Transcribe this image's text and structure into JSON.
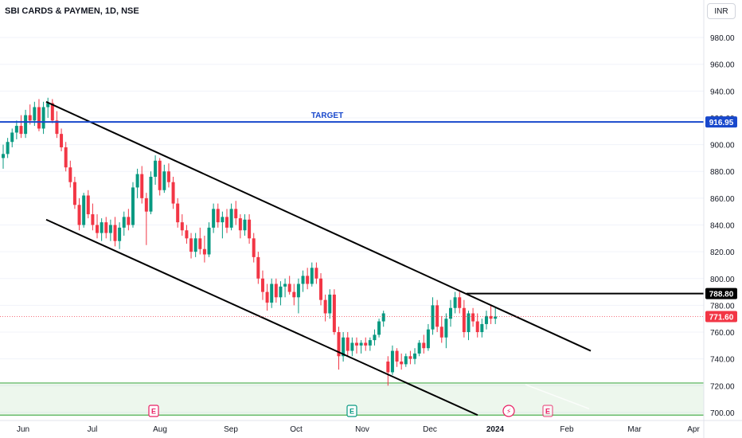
{
  "header": {
    "title": "SBI CARDS & PAYMEN, 1D, NSE",
    "currency": "INR"
  },
  "colors": {
    "up": "#089981",
    "down": "#f23645",
    "target": "#1848cc",
    "zone": "#4caf50",
    "text": "#131722",
    "grid": "#f0f3fa"
  },
  "chart_data": {
    "type": "candlestick",
    "title": "SBI CARDS & PAYMEN, 1D, NSE",
    "ylim": [
      694,
      1008
    ],
    "y_ticks": [
      "700.00",
      "720.00",
      "740.00",
      "760.00",
      "780.00",
      "800.00",
      "820.00",
      "840.00",
      "860.00",
      "880.00",
      "900.00",
      "920.00",
      "940.00",
      "960.00",
      "980.00"
    ],
    "x_ticks": [
      "Jun",
      "Jul",
      "Aug",
      "Sep",
      "Oct",
      "Nov",
      "Dec",
      "2024",
      "Feb",
      "Mar",
      "Apr"
    ],
    "price_labels": [
      {
        "text": "916.95",
        "value": 916.95,
        "style": "target"
      },
      {
        "text": "788.80",
        "value": 788.8,
        "style": "level"
      },
      {
        "text": "771.60",
        "value": 771.6,
        "style": "last"
      }
    ],
    "annotations": [
      {
        "text": "TARGET",
        "value": 916.95
      }
    ],
    "markers": [
      {
        "text": "E",
        "x": "Aug",
        "type": "earnings"
      },
      {
        "text": "E",
        "x": "Nov",
        "type": "earnings"
      },
      {
        "text": "⚡",
        "x": "2024",
        "type": "dividend"
      },
      {
        "text": "E",
        "x": "Feb",
        "type": "earnings"
      }
    ],
    "levels": [
      {
        "name": "target",
        "value": 916.95
      },
      {
        "name": "resistance",
        "value": 788.8,
        "from": "Dec",
        "to": "2024"
      }
    ],
    "zone": [
      698,
      722
    ],
    "channel": {
      "upper": [
        {
          "x": "Jun",
          "y": 932
        },
        {
          "x": "Feb",
          "y": 746
        }
      ],
      "lower": [
        {
          "x": "Jun",
          "y": 844
        },
        {
          "x": "2024",
          "y": 698
        }
      ]
    },
    "series": [
      {
        "x": "Jun",
        "o": 890,
        "h": 900,
        "l": 882,
        "c": 893
      },
      {
        "x": "Jun",
        "o": 893,
        "h": 905,
        "l": 890,
        "c": 902
      },
      {
        "x": "Jun",
        "o": 902,
        "h": 912,
        "l": 898,
        "c": 909
      },
      {
        "x": "Jun",
        "o": 909,
        "h": 918,
        "l": 904,
        "c": 914
      },
      {
        "x": "Jun",
        "o": 914,
        "h": 922,
        "l": 905,
        "c": 908
      },
      {
        "x": "Jun",
        "o": 908,
        "h": 926,
        "l": 905,
        "c": 922
      },
      {
        "x": "Jun",
        "o": 922,
        "h": 930,
        "l": 915,
        "c": 918
      },
      {
        "x": "Jun",
        "o": 918,
        "h": 932,
        "l": 914,
        "c": 928
      },
      {
        "x": "Jun",
        "o": 928,
        "h": 934,
        "l": 910,
        "c": 912
      },
      {
        "x": "Jun",
        "o": 912,
        "h": 932,
        "l": 908,
        "c": 928
      },
      {
        "x": "Jun",
        "o": 928,
        "h": 935,
        "l": 920,
        "c": 931
      },
      {
        "x": "Jun",
        "o": 931,
        "h": 934,
        "l": 916,
        "c": 918
      },
      {
        "x": "Jun",
        "o": 918,
        "h": 925,
        "l": 905,
        "c": 908
      },
      {
        "x": "Jun",
        "o": 908,
        "h": 912,
        "l": 895,
        "c": 898
      },
      {
        "x": "Jun",
        "o": 898,
        "h": 902,
        "l": 880,
        "c": 883
      },
      {
        "x": "Jun",
        "o": 883,
        "h": 888,
        "l": 868,
        "c": 872
      },
      {
        "x": "Jul",
        "o": 872,
        "h": 876,
        "l": 852,
        "c": 855
      },
      {
        "x": "Jul",
        "o": 855,
        "h": 860,
        "l": 836,
        "c": 840
      },
      {
        "x": "Jul",
        "o": 840,
        "h": 864,
        "l": 838,
        "c": 862
      },
      {
        "x": "Jul",
        "o": 862,
        "h": 866,
        "l": 845,
        "c": 848
      },
      {
        "x": "Jul",
        "o": 848,
        "h": 856,
        "l": 836,
        "c": 840
      },
      {
        "x": "Jul",
        "o": 840,
        "h": 848,
        "l": 830,
        "c": 834
      },
      {
        "x": "Jul",
        "o": 834,
        "h": 845,
        "l": 828,
        "c": 842
      },
      {
        "x": "Jul",
        "o": 842,
        "h": 846,
        "l": 830,
        "c": 834
      },
      {
        "x": "Jul",
        "o": 834,
        "h": 844,
        "l": 828,
        "c": 840
      },
      {
        "x": "Jul",
        "o": 840,
        "h": 846,
        "l": 824,
        "c": 828
      },
      {
        "x": "Jul",
        "o": 828,
        "h": 842,
        "l": 822,
        "c": 838
      },
      {
        "x": "Jul",
        "o": 838,
        "h": 850,
        "l": 832,
        "c": 846
      },
      {
        "x": "Jul",
        "o": 846,
        "h": 852,
        "l": 836,
        "c": 840
      },
      {
        "x": "Jul",
        "o": 840,
        "h": 872,
        "l": 838,
        "c": 868
      },
      {
        "x": "Jul",
        "o": 868,
        "h": 882,
        "l": 860,
        "c": 878
      },
      {
        "x": "Jul",
        "o": 878,
        "h": 884,
        "l": 856,
        "c": 860
      },
      {
        "x": "Aug",
        "o": 860,
        "h": 864,
        "l": 825,
        "c": 850
      },
      {
        "x": "Aug",
        "o": 850,
        "h": 880,
        "l": 848,
        "c": 876
      },
      {
        "x": "Aug",
        "o": 876,
        "h": 892,
        "l": 870,
        "c": 888
      },
      {
        "x": "Aug",
        "o": 888,
        "h": 890,
        "l": 862,
        "c": 866
      },
      {
        "x": "Aug",
        "o": 866,
        "h": 885,
        "l": 864,
        "c": 880
      },
      {
        "x": "Aug",
        "o": 880,
        "h": 886,
        "l": 868,
        "c": 872
      },
      {
        "x": "Aug",
        "o": 872,
        "h": 876,
        "l": 852,
        "c": 856
      },
      {
        "x": "Aug",
        "o": 856,
        "h": 860,
        "l": 838,
        "c": 842
      },
      {
        "x": "Aug",
        "o": 842,
        "h": 848,
        "l": 832,
        "c": 836
      },
      {
        "x": "Aug",
        "o": 836,
        "h": 840,
        "l": 826,
        "c": 830
      },
      {
        "x": "Aug",
        "o": 830,
        "h": 834,
        "l": 815,
        "c": 820
      },
      {
        "x": "Aug",
        "o": 820,
        "h": 834,
        "l": 816,
        "c": 830
      },
      {
        "x": "Aug",
        "o": 830,
        "h": 838,
        "l": 818,
        "c": 822
      },
      {
        "x": "Sep",
        "o": 822,
        "h": 832,
        "l": 812,
        "c": 818
      },
      {
        "x": "Sep",
        "o": 818,
        "h": 842,
        "l": 816,
        "c": 838
      },
      {
        "x": "Sep",
        "o": 838,
        "h": 856,
        "l": 834,
        "c": 852
      },
      {
        "x": "Sep",
        "o": 852,
        "h": 856,
        "l": 838,
        "c": 842
      },
      {
        "x": "Sep",
        "o": 842,
        "h": 850,
        "l": 830,
        "c": 846
      },
      {
        "x": "Sep",
        "o": 846,
        "h": 852,
        "l": 834,
        "c": 838
      },
      {
        "x": "Sep",
        "o": 838,
        "h": 856,
        "l": 836,
        "c": 852
      },
      {
        "x": "Sep",
        "o": 852,
        "h": 858,
        "l": 840,
        "c": 845
      },
      {
        "x": "Sep",
        "o": 845,
        "h": 848,
        "l": 830,
        "c": 836
      },
      {
        "x": "Sep",
        "o": 836,
        "h": 848,
        "l": 832,
        "c": 844
      },
      {
        "x": "Sep",
        "o": 844,
        "h": 848,
        "l": 826,
        "c": 830
      },
      {
        "x": "Sep",
        "o": 830,
        "h": 834,
        "l": 812,
        "c": 816
      },
      {
        "x": "Sep",
        "o": 816,
        "h": 820,
        "l": 796,
        "c": 800
      },
      {
        "x": "Sep",
        "o": 800,
        "h": 806,
        "l": 784,
        "c": 790
      },
      {
        "x": "Oct",
        "o": 790,
        "h": 796,
        "l": 776,
        "c": 782
      },
      {
        "x": "Oct",
        "o": 782,
        "h": 800,
        "l": 778,
        "c": 796
      },
      {
        "x": "Oct",
        "o": 796,
        "h": 800,
        "l": 782,
        "c": 786
      },
      {
        "x": "Oct",
        "o": 786,
        "h": 798,
        "l": 780,
        "c": 794
      },
      {
        "x": "Oct",
        "o": 794,
        "h": 800,
        "l": 786,
        "c": 796
      },
      {
        "x": "Oct",
        "o": 796,
        "h": 802,
        "l": 788,
        "c": 790
      },
      {
        "x": "Oct",
        "o": 790,
        "h": 796,
        "l": 780,
        "c": 786
      },
      {
        "x": "Oct",
        "o": 786,
        "h": 800,
        "l": 774,
        "c": 796
      },
      {
        "x": "Oct",
        "o": 796,
        "h": 806,
        "l": 790,
        "c": 802
      },
      {
        "x": "Oct",
        "o": 802,
        "h": 808,
        "l": 792,
        "c": 796
      },
      {
        "x": "Oct",
        "o": 796,
        "h": 812,
        "l": 794,
        "c": 808
      },
      {
        "x": "Oct",
        "o": 808,
        "h": 812,
        "l": 796,
        "c": 800
      },
      {
        "x": "Oct",
        "o": 800,
        "h": 804,
        "l": 780,
        "c": 784
      },
      {
        "x": "Oct",
        "o": 784,
        "h": 788,
        "l": 768,
        "c": 774
      },
      {
        "x": "Oct",
        "o": 774,
        "h": 792,
        "l": 770,
        "c": 788
      },
      {
        "x": "Oct",
        "o": 788,
        "h": 792,
        "l": 758,
        "c": 760
      },
      {
        "x": "Nov",
        "o": 760,
        "h": 764,
        "l": 732,
        "c": 742
      },
      {
        "x": "Nov",
        "o": 742,
        "h": 760,
        "l": 738,
        "c": 756
      },
      {
        "x": "Nov",
        "o": 756,
        "h": 760,
        "l": 742,
        "c": 746
      },
      {
        "x": "Nov",
        "o": 746,
        "h": 756,
        "l": 742,
        "c": 752
      },
      {
        "x": "Nov",
        "o": 752,
        "h": 756,
        "l": 744,
        "c": 750
      },
      {
        "x": "Nov",
        "o": 750,
        "h": 754,
        "l": 744,
        "c": 752
      },
      {
        "x": "Nov",
        "o": 752,
        "h": 756,
        "l": 746,
        "c": 750
      },
      {
        "x": "Nov",
        "o": 750,
        "h": 756,
        "l": 746,
        "c": 754
      },
      {
        "x": "Nov",
        "o": 754,
        "h": 762,
        "l": 750,
        "c": 758
      },
      {
        "x": "Nov",
        "o": 758,
        "h": 770,
        "l": 756,
        "c": 768
      },
      {
        "x": "Nov",
        "o": 768,
        "h": 776,
        "l": 764,
        "c": 774
      },
      {
        "x": "Nov",
        "o": 738,
        "h": 742,
        "l": 720,
        "c": 730
      },
      {
        "x": "Nov",
        "o": 730,
        "h": 750,
        "l": 728,
        "c": 746
      },
      {
        "x": "Nov",
        "o": 746,
        "h": 748,
        "l": 734,
        "c": 738
      },
      {
        "x": "Dec",
        "o": 738,
        "h": 744,
        "l": 732,
        "c": 736
      },
      {
        "x": "Dec",
        "o": 736,
        "h": 744,
        "l": 734,
        "c": 742
      },
      {
        "x": "Dec",
        "o": 742,
        "h": 746,
        "l": 736,
        "c": 740
      },
      {
        "x": "Dec",
        "o": 740,
        "h": 748,
        "l": 736,
        "c": 744
      },
      {
        "x": "Dec",
        "o": 744,
        "h": 754,
        "l": 742,
        "c": 752
      },
      {
        "x": "Dec",
        "o": 752,
        "h": 758,
        "l": 744,
        "c": 748
      },
      {
        "x": "Dec",
        "o": 748,
        "h": 766,
        "l": 746,
        "c": 762
      },
      {
        "x": "Dec",
        "o": 762,
        "h": 786,
        "l": 758,
        "c": 780
      },
      {
        "x": "Dec",
        "o": 780,
        "h": 784,
        "l": 760,
        "c": 764
      },
      {
        "x": "Dec",
        "o": 764,
        "h": 772,
        "l": 752,
        "c": 756
      },
      {
        "x": "Dec",
        "o": 756,
        "h": 774,
        "l": 748,
        "c": 770
      },
      {
        "x": "Dec",
        "o": 770,
        "h": 784,
        "l": 764,
        "c": 778
      },
      {
        "x": "Dec",
        "o": 778,
        "h": 790,
        "l": 774,
        "c": 786
      },
      {
        "x": "Dec",
        "o": 786,
        "h": 790,
        "l": 774,
        "c": 778
      },
      {
        "x": "2024",
        "o": 778,
        "h": 784,
        "l": 756,
        "c": 760
      },
      {
        "x": "2024",
        "o": 760,
        "h": 776,
        "l": 754,
        "c": 774
      },
      {
        "x": "2024",
        "o": 774,
        "h": 778,
        "l": 764,
        "c": 768
      },
      {
        "x": "2024",
        "o": 768,
        "h": 774,
        "l": 756,
        "c": 760
      },
      {
        "x": "2024",
        "o": 760,
        "h": 770,
        "l": 756,
        "c": 766
      },
      {
        "x": "2024",
        "o": 766,
        "h": 776,
        "l": 762,
        "c": 772
      },
      {
        "x": "2024",
        "o": 772,
        "h": 780,
        "l": 766,
        "c": 770
      },
      {
        "x": "2024",
        "o": 770,
        "h": 778,
        "l": 766,
        "c": 771.6
      }
    ]
  }
}
